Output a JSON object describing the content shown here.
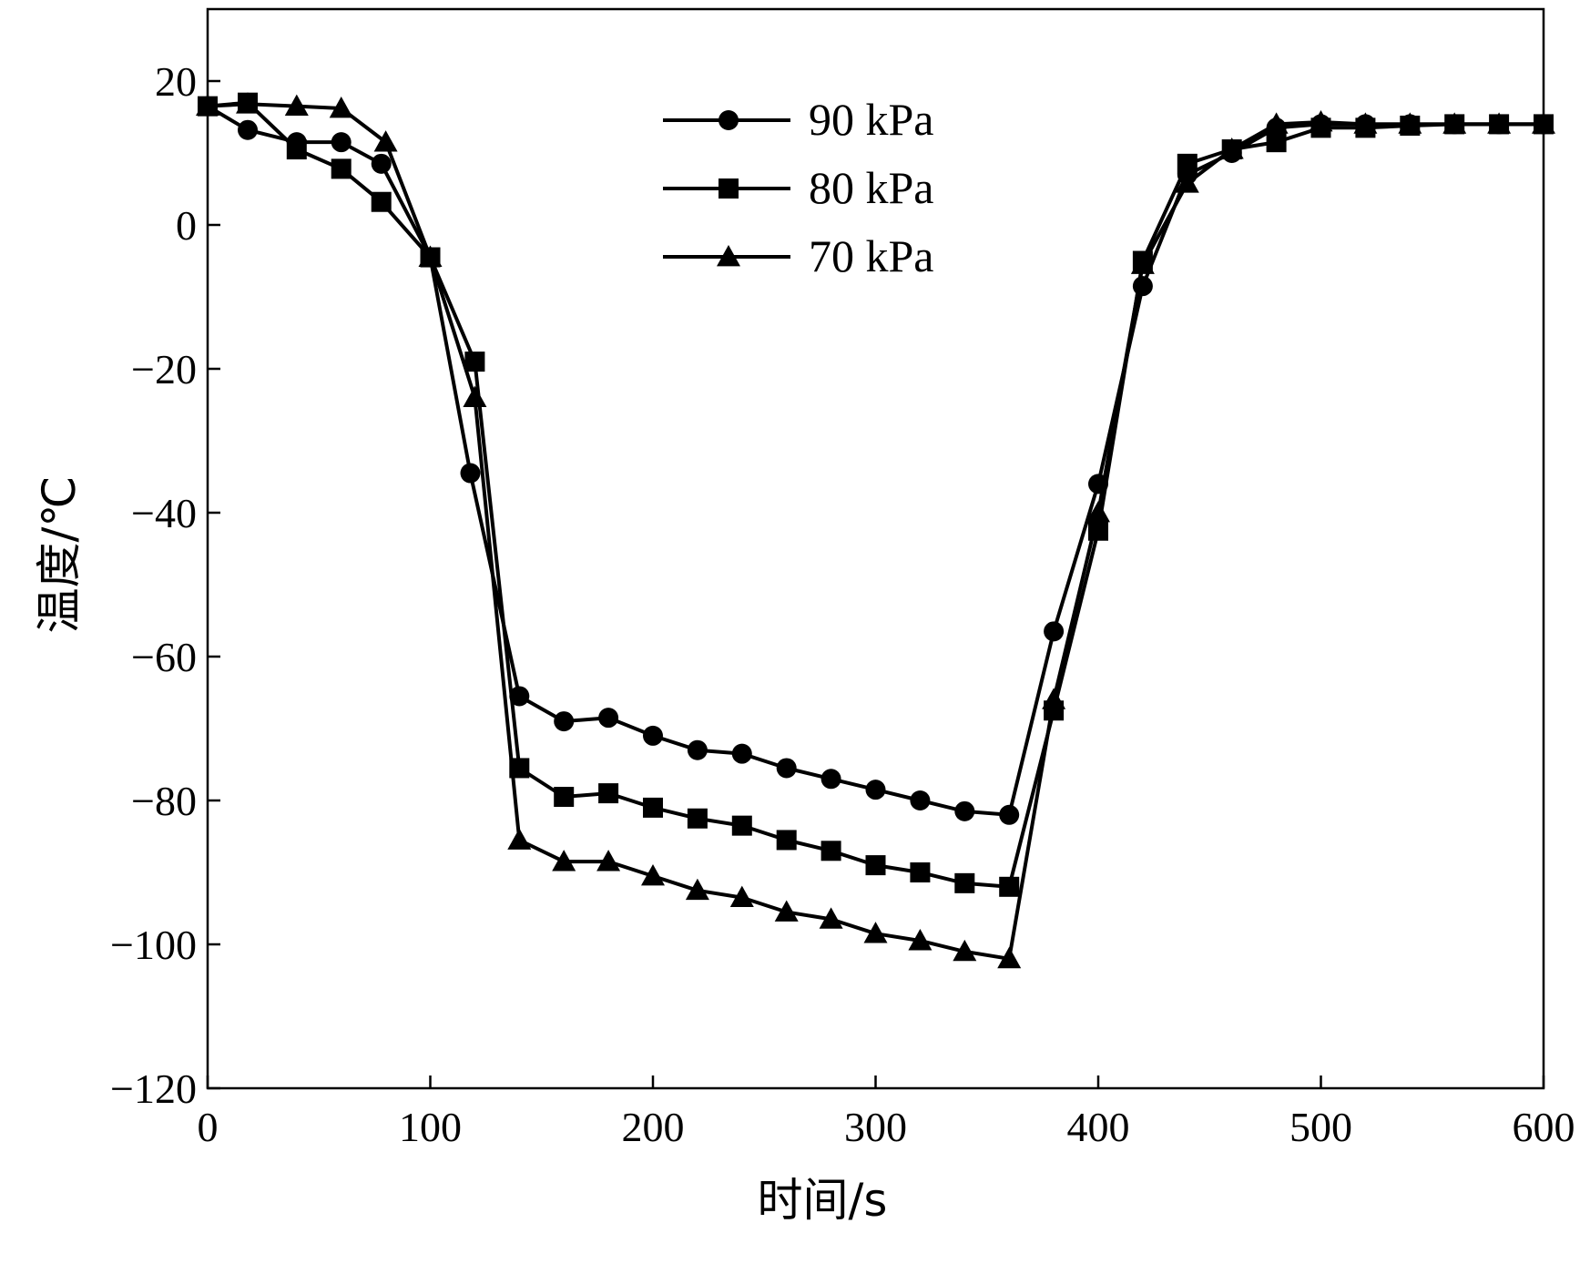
{
  "chart_data": {
    "type": "line",
    "title": "",
    "xlabel": "时间/s",
    "ylabel": "温度/℃",
    "xlim": [
      0,
      600
    ],
    "ylim": [
      -120,
      30
    ],
    "xticks": [
      0,
      100,
      200,
      300,
      400,
      500,
      600
    ],
    "yticks": [
      -120,
      -100,
      -80,
      -60,
      -40,
      -20,
      0,
      20
    ],
    "xtick_labels": [
      "0",
      "100",
      "200",
      "300",
      "400",
      "500",
      "600"
    ],
    "ytick_labels": [
      "−120",
      "−100",
      "−80",
      "−60",
      "−40",
      "−20",
      "0",
      "20"
    ],
    "grid": false,
    "legend_position": "top-center",
    "series": [
      {
        "name": "90 kPa",
        "marker": "circle",
        "color": "#000000",
        "x": [
          0,
          18,
          40,
          60,
          78,
          100,
          118,
          140,
          160,
          180,
          200,
          220,
          240,
          260,
          280,
          300,
          320,
          340,
          360,
          380,
          400,
          420,
          440,
          460,
          480,
          500,
          520,
          540,
          560,
          580,
          600
        ],
        "y": [
          16.5,
          13.2,
          11.5,
          11.5,
          8.5,
          -4.5,
          -34.5,
          -65.5,
          -69,
          -68.5,
          -71,
          -73,
          -73.5,
          -75.5,
          -77,
          -78.5,
          -80,
          -81.5,
          -82,
          -56.5,
          -36,
          -8.5,
          7,
          10,
          13.5,
          14,
          14,
          14,
          14,
          14,
          14
        ]
      },
      {
        "name": "80 kPa",
        "marker": "square",
        "color": "#000000",
        "x": [
          0,
          18,
          40,
          60,
          78,
          100,
          120,
          140,
          160,
          180,
          200,
          220,
          240,
          260,
          280,
          300,
          320,
          340,
          360,
          380,
          400,
          420,
          440,
          460,
          480,
          500,
          520,
          540,
          560,
          580,
          600
        ],
        "y": [
          16.5,
          17,
          10.5,
          7.8,
          3.2,
          -4.5,
          -19,
          -75.5,
          -79.5,
          -79,
          -81,
          -82.5,
          -83.5,
          -85.5,
          -87,
          -89,
          -90,
          -91.5,
          -92,
          -67.5,
          -42.5,
          -5,
          8.5,
          10.5,
          11.5,
          13.5,
          13.5,
          13.8,
          14,
          14,
          14
        ]
      },
      {
        "name": "70 kPa",
        "marker": "triangle",
        "color": "#000000",
        "x": [
          0,
          18,
          40,
          60,
          80,
          100,
          120,
          140,
          160,
          180,
          200,
          220,
          240,
          260,
          280,
          300,
          320,
          340,
          360,
          380,
          400,
          420,
          440,
          460,
          480,
          500,
          520,
          540,
          560,
          580,
          600
        ],
        "y": [
          16.5,
          16.8,
          16.5,
          16.2,
          11.5,
          -4.5,
          -24,
          -85.5,
          -88.5,
          -88.5,
          -90.5,
          -92.5,
          -93.5,
          -95.5,
          -96.5,
          -98.5,
          -99.5,
          -101,
          -102,
          -66,
          -40,
          -5.5,
          5.8,
          10.5,
          14,
          14.3,
          14,
          14,
          14,
          14,
          14
        ]
      }
    ]
  }
}
